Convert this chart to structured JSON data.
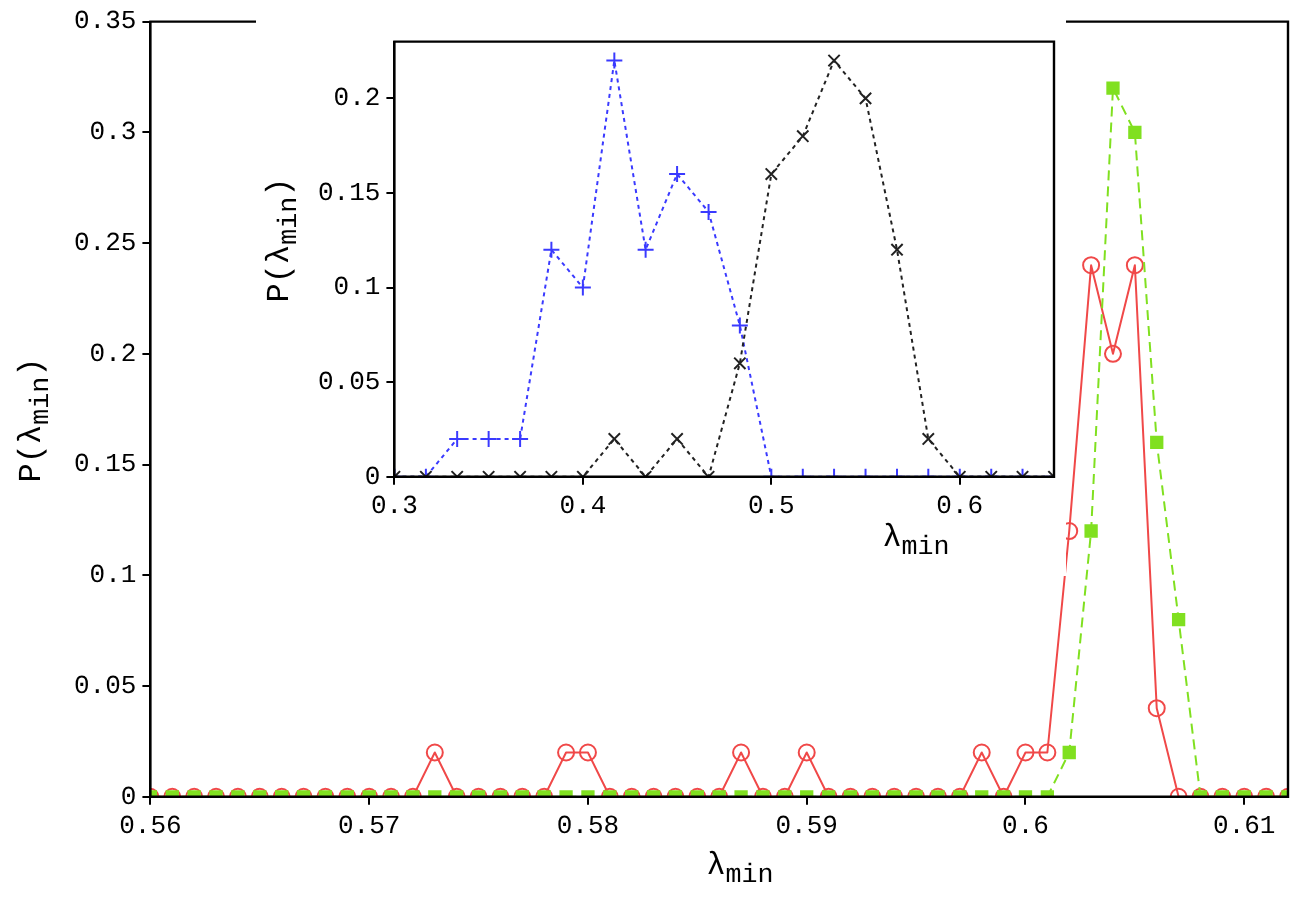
{
  "chart_data": [
    {
      "type": "line",
      "xlabel": "λ$_{min}$",
      "ylabel": "P(λ$_{min}$)",
      "xlim": [
        0.56,
        0.612
      ],
      "xticks": [
        0.56,
        0.57,
        0.58,
        0.59,
        0.6,
        0.61
      ],
      "ylim": [
        0,
        0.35
      ],
      "yticks": [
        0,
        0.05,
        0.1,
        0.15,
        0.2,
        0.25,
        0.3,
        0.35
      ],
      "x": [
        0.56,
        0.561,
        0.562,
        0.563,
        0.564,
        0.565,
        0.566,
        0.567,
        0.568,
        0.569,
        0.57,
        0.571,
        0.572,
        0.573,
        0.574,
        0.575,
        0.576,
        0.577,
        0.578,
        0.579,
        0.58,
        0.581,
        0.582,
        0.583,
        0.584,
        0.585,
        0.586,
        0.587,
        0.588,
        0.589,
        0.59,
        0.591,
        0.592,
        0.593,
        0.594,
        0.595,
        0.596,
        0.597,
        0.598,
        0.599,
        0.6,
        0.601,
        0.602,
        0.603,
        0.604,
        0.605,
        0.606,
        0.607,
        0.608,
        0.609,
        0.61,
        0.611,
        0.612
      ],
      "series": [
        {
          "color": "#f04848",
          "marker": "circle",
          "line_style": "solid",
          "values": [
            0,
            0,
            0,
            0,
            0,
            0,
            0,
            0,
            0,
            0,
            0,
            0,
            0,
            0.02,
            0,
            0,
            0,
            0,
            0,
            0.02,
            0.02,
            0,
            0,
            0,
            0,
            0,
            0,
            0.02,
            0,
            0,
            0.02,
            0,
            0,
            0,
            0,
            0,
            0,
            0,
            0.02,
            0,
            0.02,
            0.02,
            0.12,
            0.24,
            0.2,
            0.24,
            0.04,
            0,
            0,
            0,
            0,
            0,
            0
          ]
        },
        {
          "color": "#80e020",
          "marker": "square",
          "line_style": "dashed",
          "values": [
            0,
            0,
            0,
            0,
            0,
            0,
            0,
            0,
            0,
            0,
            0,
            0,
            0,
            0,
            0,
            0,
            0,
            0,
            0,
            0,
            0,
            0,
            0,
            0,
            0,
            0,
            0,
            0,
            0,
            0,
            0,
            0,
            0,
            0,
            0,
            0,
            0,
            0,
            0,
            0,
            0,
            0,
            0.02,
            0.12,
            0.32,
            0.3,
            0.16,
            0.08,
            0,
            0,
            0,
            0,
            0
          ]
        }
      ]
    },
    {
      "type": "line",
      "xlabel": "λ$_{min}$",
      "ylabel": "P(λ$_{min}$)",
      "xlim": [
        0.3,
        0.65
      ],
      "xticks": [
        0.3,
        0.4,
        0.5,
        0.6
      ],
      "ylim": [
        0,
        0.23
      ],
      "yticks": [
        0,
        0.05,
        0.1,
        0.15,
        0.2
      ],
      "x": [
        0.3,
        0.3167,
        0.3333,
        0.35,
        0.3667,
        0.3833,
        0.4,
        0.4167,
        0.4333,
        0.45,
        0.4667,
        0.4833,
        0.5,
        0.5167,
        0.5333,
        0.55,
        0.5667,
        0.5833,
        0.6,
        0.6167,
        0.6333,
        0.65
      ],
      "series": [
        {
          "color": "#3a3aff",
          "marker": "cross",
          "line_style": "dotted",
          "values": [
            0,
            0,
            0.02,
            0.02,
            0.02,
            0.12,
            0.1,
            0.22,
            0.12,
            0.16,
            0.14,
            0.08,
            0,
            0,
            0,
            0,
            0,
            0,
            0,
            0,
            0,
            0
          ]
        },
        {
          "color": "#222222",
          "marker": "cross",
          "line_style": "dotted",
          "values": [
            0,
            0,
            0,
            0,
            0,
            0,
            0,
            0.02,
            0,
            0.02,
            0,
            0.06,
            0.16,
            0.18,
            0.22,
            0.2,
            0.12,
            0.02,
            0,
            0,
            0,
            0
          ]
        }
      ]
    }
  ]
}
